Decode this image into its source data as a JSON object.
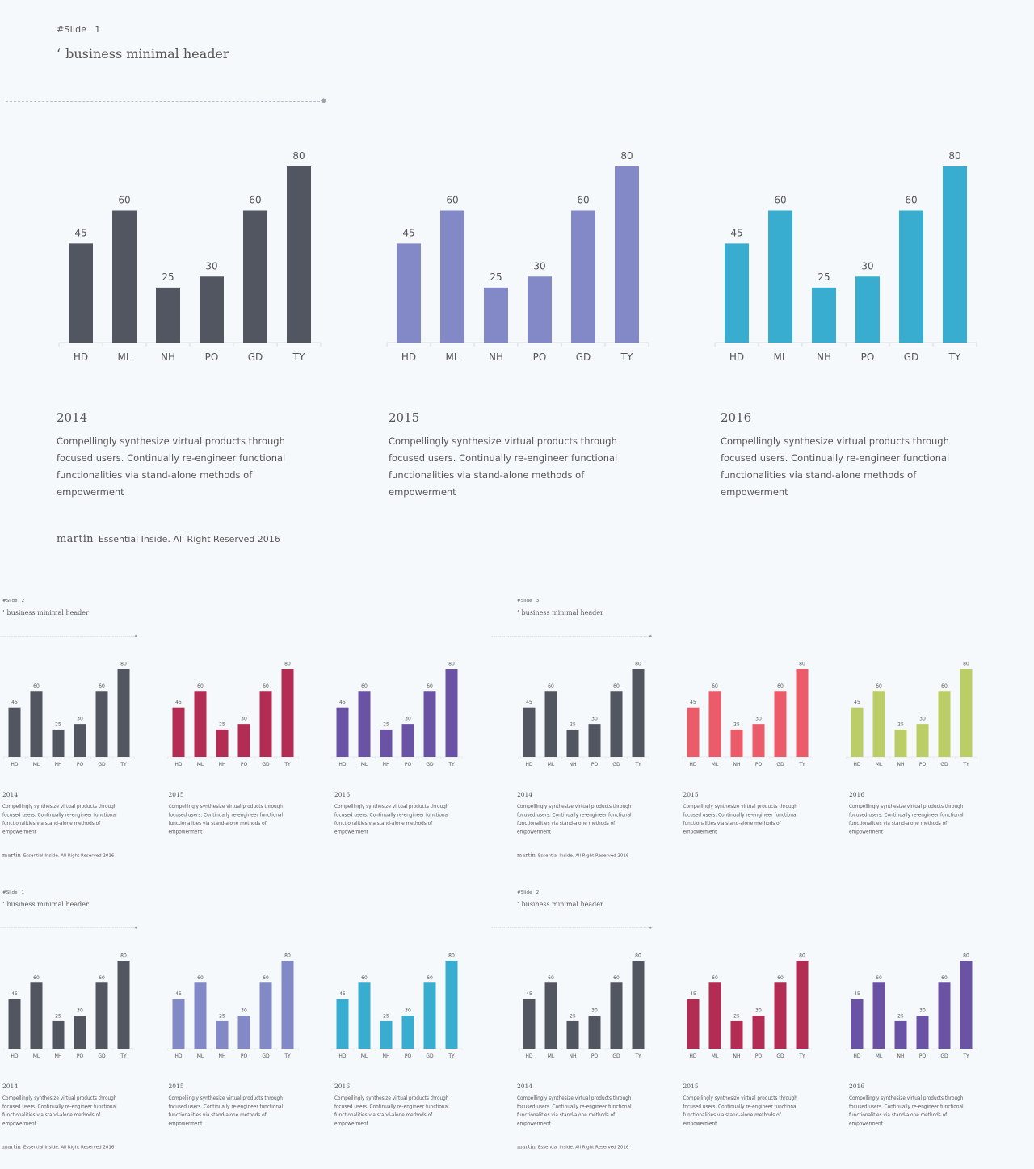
{
  "slides": [
    {
      "slide_label": "#Slide",
      "slide_number": "1",
      "header_quote": "‘",
      "header_title": "business minimal header",
      "footer_brand": "martin",
      "footer_text": "Essential Inside. All Right Reserved 2016",
      "columns": [
        {
          "year": "2014",
          "description": "Compellingly synthesize virtual products through focused users. Continually re-engineer functional functionalities via stand-alone methods of empowerment",
          "color": "#525660"
        },
        {
          "year": "2015",
          "description": "Compellingly synthesize virtual products through focused users. Continually re-engineer functional functionalities via stand-alone methods of empowerment",
          "color": "#8289c6"
        },
        {
          "year": "2016",
          "description": "Compellingly synthesize virtual products through focused users. Continually re-engineer functional functionalities via stand-alone methods of empowerment",
          "color": "#39adcf"
        }
      ]
    },
    {
      "slide_label": "#Slide",
      "slide_number": "2",
      "header_quote": "‘",
      "header_title": "business minimal header",
      "footer_brand": "martin",
      "footer_text": "Essential Inside. All Right Reserved 2016",
      "columns": [
        {
          "year": "2014",
          "description": "Compellingly synthesize virtual products through focused users. Continually re-engineer functional functionalities via stand-alone methods of empowerment",
          "color": "#525660"
        },
        {
          "year": "2015",
          "description": "Compellingly synthesize virtual products through focused users. Continually re-engineer functional functionalities via stand-alone methods of empowerment",
          "color": "#b22c53"
        },
        {
          "year": "2016",
          "description": "Compellingly synthesize virtual products through focused users. Continually re-engineer functional functionalities via stand-alone methods of empowerment",
          "color": "#6a52a4"
        }
      ]
    },
    {
      "slide_label": "#Slide",
      "slide_number": "3",
      "header_quote": "‘",
      "header_title": "business minimal header",
      "footer_brand": "martin",
      "footer_text": "Essential Inside. All Right Reserved 2016",
      "columns": [
        {
          "year": "2014",
          "description": "Compellingly synthesize virtual products through focused users. Continually re-engineer functional functionalities via stand-alone methods of empowerment",
          "color": "#525660"
        },
        {
          "year": "2015",
          "description": "Compellingly synthesize virtual products through focused users. Continually re-engineer functional functionalities via stand-alone methods of empowerment",
          "color": "#ec5b6a"
        },
        {
          "year": "2016",
          "description": "Compellingly synthesize virtual products through focused users. Continually re-engineer functional functionalities via stand-alone methods of empowerment",
          "color": "#bacd66"
        }
      ]
    },
    {
      "slide_label": "#Slide",
      "slide_number": "1",
      "header_quote": "‘",
      "header_title": "business minimal header",
      "footer_brand": "martin",
      "footer_text": "Essential Inside. All Right Reserved 2016",
      "columns": [
        {
          "year": "2014",
          "description": "Compellingly synthesize virtual products through focused users. Continually re-engineer functional functionalities via stand-alone methods of empowerment",
          "color": "#525660"
        },
        {
          "year": "2015",
          "description": "Compellingly synthesize virtual products through focused users. Continually re-engineer functional functionalities via stand-alone methods of empowerment",
          "color": "#8289c6"
        },
        {
          "year": "2016",
          "description": "Compellingly synthesize virtual products through focused users. Continually re-engineer functional functionalities via stand-alone methods of empowerment",
          "color": "#39adcf"
        }
      ]
    },
    {
      "slide_label": "#Slide",
      "slide_number": "2",
      "header_quote": "‘",
      "header_title": "business minimal header",
      "footer_brand": "martin",
      "footer_text": "Essential Inside. All Right Reserved 2016",
      "columns": [
        {
          "year": "2014",
          "description": "Compellingly synthesize virtual products through focused users. Continually re-engineer functional functionalities via stand-alone methods of empowerment",
          "color": "#525660"
        },
        {
          "year": "2015",
          "description": "Compellingly synthesize virtual products through focused users. Continually re-engineer functional functionalities via stand-alone methods of empowerment",
          "color": "#b22c53"
        },
        {
          "year": "2016",
          "description": "Compellingly synthesize virtual products through focused users. Continually re-engineer functional functionalities via stand-alone methods of empowerment",
          "color": "#6a52a4"
        }
      ]
    }
  ],
  "chart_data": {
    "type": "bar",
    "categories": [
      "HD",
      "ML",
      "NH",
      "PO",
      "GD",
      "TY"
    ],
    "values": [
      45,
      60,
      25,
      30,
      60,
      80
    ],
    "ylim": [
      0,
      80
    ],
    "grid": false,
    "data_labels": true
  }
}
